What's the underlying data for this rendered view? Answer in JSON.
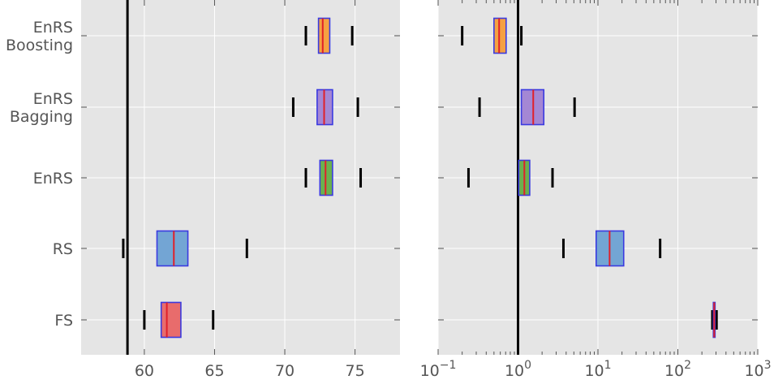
{
  "chart_data": [
    {
      "type": "box",
      "orientation": "horizontal",
      "categories": [
        "EnRS Boosting",
        "EnRS Bagging",
        "EnRS",
        "RS",
        "FS"
      ],
      "category_lines": [
        [
          "EnRS",
          "Boosting"
        ],
        [
          "EnRS",
          "Bagging"
        ],
        [
          "EnRS"
        ],
        [
          "RS"
        ],
        [
          "FS"
        ]
      ],
      "xlim": [
        55.5,
        78.2
      ],
      "xscale": "linear",
      "xticks": [
        60,
        65,
        70,
        75
      ],
      "xtick_labels": [
        "60",
        "65",
        "70",
        "75"
      ],
      "reference_line": 58.8,
      "grid": true,
      "boxes": [
        {
          "category": "EnRS Boosting",
          "whisker_low": 71.5,
          "q1": 72.4,
          "median": 72.7,
          "q3": 73.2,
          "whisker_high": 74.8,
          "fill": "#f5a142"
        },
        {
          "category": "EnRS Bagging",
          "whisker_low": 70.6,
          "q1": 72.3,
          "median": 72.8,
          "q3": 73.4,
          "whisker_high": 75.2,
          "fill": "#a487d4"
        },
        {
          "category": "EnRS",
          "whisker_low": 71.5,
          "q1": 72.5,
          "median": 72.9,
          "q3": 73.4,
          "whisker_high": 75.4,
          "fill": "#6bb04f"
        },
        {
          "category": "RS",
          "whisker_low": 58.5,
          "q1": 60.9,
          "median": 62.1,
          "q3": 63.1,
          "whisker_high": 67.3,
          "fill": "#73a5d4"
        },
        {
          "category": "FS",
          "whisker_low": 60.0,
          "q1": 61.2,
          "median": 61.6,
          "q3": 62.6,
          "whisker_high": 64.9,
          "fill": "#e86c6c"
        }
      ]
    },
    {
      "type": "box",
      "orientation": "horizontal",
      "categories": [
        "EnRS Boosting",
        "EnRS Bagging",
        "EnRS",
        "RS",
        "FS"
      ],
      "xlim": [
        0.1,
        1000
      ],
      "xscale": "log",
      "xticks": [
        0.1,
        1,
        10,
        100,
        1000
      ],
      "xtick_labels": [
        {
          "base": "10",
          "exp": "−1"
        },
        {
          "base": "10",
          "exp": "0"
        },
        {
          "base": "10",
          "exp": "1"
        },
        {
          "base": "10",
          "exp": "2"
        },
        {
          "base": "10",
          "exp": "3"
        }
      ],
      "reference_line": 1.0,
      "grid": true,
      "boxes": [
        {
          "category": "EnRS Boosting",
          "whisker_low": 0.2,
          "q1": 0.5,
          "median": 0.58,
          "q3": 0.71,
          "whisker_high": 1.1,
          "fill": "#f5a142"
        },
        {
          "category": "EnRS Bagging",
          "whisker_low": 0.33,
          "q1": 1.1,
          "median": 1.55,
          "q3": 2.1,
          "whisker_high": 5.1,
          "fill": "#a487d4"
        },
        {
          "category": "EnRS",
          "whisker_low": 0.24,
          "q1": 1.02,
          "median": 1.2,
          "q3": 1.4,
          "whisker_high": 2.7,
          "fill": "#6bb04f"
        },
        {
          "category": "RS",
          "whisker_low": 3.7,
          "q1": 9.5,
          "median": 14,
          "q3": 21,
          "whisker_high": 60,
          "fill": "#73a5d4"
        },
        {
          "category": "FS",
          "whisker_low": 270,
          "q1": 278,
          "median": 285,
          "q3": 292,
          "whisker_high": 305,
          "fill": "#e86c6c"
        }
      ]
    }
  ]
}
